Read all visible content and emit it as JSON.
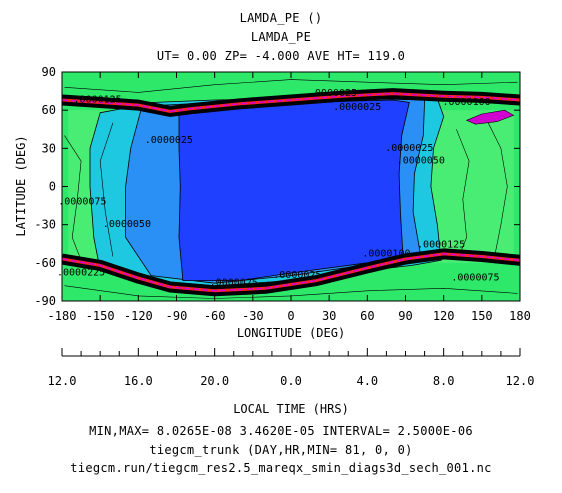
{
  "header": {
    "line1": "LAMDA_PE ()",
    "line2": "LAMDA_PE",
    "line3": "UT= 0.00 ZP= -4.000 AVE HT= 119.0"
  },
  "footer": {
    "stats": "MIN,MAX=  8.0265E-08  3.4620E-05 INTERVAL=  2.5000E-06",
    "run": "tiegcm_trunk (DAY,HR,MIN= 81, 0, 0)",
    "file": "tiegcm.run/tiegcm_res2.5_mareqx_smin_diags3d_sech_001.nc"
  },
  "colors": {
    "deep_blue": "#1f40ff",
    "mid_blue": "#2a90f5",
    "cyan": "#1ec8e0",
    "green": "#2ee86a",
    "light_green": "#5cf07a",
    "band_black": "#000000",
    "band_red": "#ff2020",
    "band_magenta": "#d000d0"
  },
  "chart_data": {
    "type": "contour",
    "title": "LAMDA_PE ()",
    "subtitle": "LAMDA_PE",
    "xlabel": "LONGITUDE (DEG)",
    "ylabel": "LATITUDE (DEG)",
    "x2label": "LOCAL TIME (HRS)",
    "xlim": [
      -180,
      180
    ],
    "ylim": [
      -90,
      90
    ],
    "xticks": [
      -180,
      -150,
      -120,
      -90,
      -60,
      -30,
      0,
      30,
      60,
      90,
      120,
      150,
      180
    ],
    "xtick_labels": [
      "-180",
      "-150",
      "-120",
      "-90",
      "-60",
      "-30",
      "0",
      "30",
      "60",
      "90",
      "120",
      "150",
      "180"
    ],
    "yticks": [
      -90,
      -60,
      -30,
      0,
      30,
      60,
      90
    ],
    "ytick_labels": [
      "-90",
      "-60",
      "-30",
      "0",
      "30",
      "60",
      "90"
    ],
    "lt_tick_labels": [
      "12.0",
      "16.0",
      "20.0",
      "0.0",
      "4.0",
      "8.0",
      "12.0"
    ],
    "min": "8.0265E-08",
    "max": "3.4620E-05",
    "interval": "2.5000E-06",
    "contour_labels": [
      {
        "text": ".0000125",
        "lon": -152,
        "lat": 66
      },
      {
        "text": ".0000025",
        "lon": 33,
        "lat": 71
      },
      {
        "text": ".0000025",
        "lon": 52,
        "lat": 60
      },
      {
        "text": ".0000100",
        "lon": 138,
        "lat": 64
      },
      {
        "text": ".0000025",
        "lon": -96,
        "lat": 34
      },
      {
        "text": ".0000025",
        "lon": 93,
        "lat": 28
      },
      {
        "text": ".0000050",
        "lon": 102,
        "lat": 18
      },
      {
        "text": ".0000075",
        "lon": -164,
        "lat": -14
      },
      {
        "text": ".0000050",
        "lon": -129,
        "lat": -32
      },
      {
        "text": ".0000100",
        "lon": 75,
        "lat": -55
      },
      {
        "text": ".0000125",
        "lon": 118,
        "lat": -48
      },
      {
        "text": ".0000225",
        "lon": -165,
        "lat": -70
      },
      {
        "text": ".0000025",
        "lon": -45,
        "lat": -78
      },
      {
        "text": ".0000025",
        "lon": 5,
        "lat": -72
      },
      {
        "text": ".0000075",
        "lon": 145,
        "lat": -74
      }
    ]
  }
}
